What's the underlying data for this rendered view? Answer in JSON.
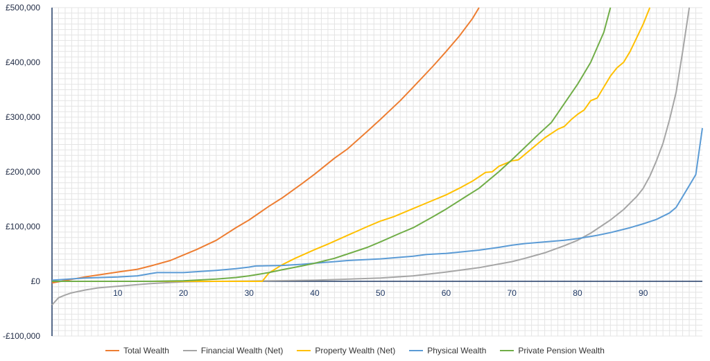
{
  "chart_data": {
    "type": "line",
    "title": "",
    "xlabel": "",
    "ylabel": "",
    "xlim": [
      0,
      99
    ],
    "ylim": [
      -100000,
      500000
    ],
    "y_ticks": [
      500000,
      400000,
      300000,
      200000,
      100000,
      0,
      -100000
    ],
    "y_tick_labels": [
      "£500,000",
      "£400,000",
      "£300,000",
      "£200,000",
      "£100,000",
      "£0",
      "-£100,000"
    ],
    "x_ticks": [
      10,
      20,
      30,
      40,
      50,
      60,
      70,
      80,
      90
    ],
    "x_tick_labels": [
      "10",
      "20",
      "30",
      "40",
      "50",
      "60",
      "70",
      "80",
      "90"
    ],
    "grid": true,
    "legend_position": "bottom",
    "series": [
      {
        "name": "Total Wealth",
        "color": "#ED7D31",
        "points": [
          [
            0,
            -3000
          ],
          [
            5,
            8000
          ],
          [
            10,
            17000
          ],
          [
            13,
            22000
          ],
          [
            15,
            28000
          ],
          [
            18,
            38000
          ],
          [
            20,
            48000
          ],
          [
            22,
            58000
          ],
          [
            25,
            75000
          ],
          [
            28,
            98000
          ],
          [
            30,
            112000
          ],
          [
            33,
            137000
          ],
          [
            35,
            152000
          ],
          [
            38,
            178000
          ],
          [
            40,
            196000
          ],
          [
            43,
            225000
          ],
          [
            45,
            242000
          ],
          [
            48,
            274000
          ],
          [
            50,
            296000
          ],
          [
            53,
            330000
          ],
          [
            55,
            355000
          ],
          [
            58,
            393000
          ],
          [
            60,
            420000
          ],
          [
            62,
            448000
          ],
          [
            64,
            480000
          ],
          [
            65,
            500000
          ]
        ]
      },
      {
        "name": "Financial Wealth (Net)",
        "color": "#A5A5A5",
        "points": [
          [
            0,
            -43000
          ],
          [
            1,
            -30000
          ],
          [
            2,
            -25000
          ],
          [
            3,
            -21000
          ],
          [
            5,
            -16000
          ],
          [
            7,
            -12000
          ],
          [
            10,
            -9000
          ],
          [
            15,
            -4000
          ],
          [
            20,
            -1000
          ],
          [
            25,
            0
          ],
          [
            30,
            500
          ],
          [
            40,
            2000
          ],
          [
            50,
            6000
          ],
          [
            55,
            10000
          ],
          [
            60,
            17000
          ],
          [
            65,
            25000
          ],
          [
            70,
            36000
          ],
          [
            72,
            42000
          ],
          [
            75,
            52000
          ],
          [
            78,
            65000
          ],
          [
            80,
            75000
          ],
          [
            82,
            88000
          ],
          [
            85,
            112000
          ],
          [
            87,
            131000
          ],
          [
            89,
            155000
          ],
          [
            90,
            170000
          ],
          [
            91,
            192000
          ],
          [
            92,
            220000
          ],
          [
            93,
            252000
          ],
          [
            94,
            295000
          ],
          [
            95,
            345000
          ],
          [
            96,
            420000
          ],
          [
            97,
            500000
          ]
        ]
      },
      {
        "name": "Property Wealth (Net)",
        "color": "#FFC000",
        "points": [
          [
            0,
            0
          ],
          [
            32,
            0
          ],
          [
            33,
            15000
          ],
          [
            35,
            30000
          ],
          [
            37,
            42000
          ],
          [
            40,
            58000
          ],
          [
            42,
            68000
          ],
          [
            45,
            84000
          ],
          [
            48,
            100000
          ],
          [
            50,
            110000
          ],
          [
            52,
            118000
          ],
          [
            55,
            133000
          ],
          [
            57,
            143000
          ],
          [
            60,
            158000
          ],
          [
            62,
            170000
          ],
          [
            64,
            183000
          ],
          [
            66,
            199000
          ],
          [
            67,
            200000
          ],
          [
            68,
            210000
          ],
          [
            70,
            220000
          ],
          [
            71,
            222000
          ],
          [
            72,
            232000
          ],
          [
            75,
            262000
          ],
          [
            77,
            278000
          ],
          [
            78,
            283000
          ],
          [
            79,
            295000
          ],
          [
            80,
            305000
          ],
          [
            81,
            313000
          ],
          [
            82,
            330000
          ],
          [
            83,
            335000
          ],
          [
            84,
            355000
          ],
          [
            85,
            375000
          ],
          [
            86,
            390000
          ],
          [
            87,
            400000
          ],
          [
            88,
            420000
          ],
          [
            89,
            445000
          ],
          [
            90,
            470000
          ],
          [
            91,
            500000
          ]
        ]
      },
      {
        "name": "Physical Wealth",
        "color": "#5B9BD5",
        "points": [
          [
            0,
            2000
          ],
          [
            5,
            6000
          ],
          [
            10,
            8000
          ],
          [
            13,
            10000
          ],
          [
            15,
            14000
          ],
          [
            16,
            16000
          ],
          [
            20,
            16000
          ],
          [
            25,
            20000
          ],
          [
            28,
            23000
          ],
          [
            30,
            26000
          ],
          [
            31,
            28000
          ],
          [
            35,
            29000
          ],
          [
            38,
            31000
          ],
          [
            40,
            33000
          ],
          [
            43,
            36000
          ],
          [
            45,
            38000
          ],
          [
            50,
            41000
          ],
          [
            55,
            46000
          ],
          [
            57,
            49000
          ],
          [
            60,
            51000
          ],
          [
            65,
            57000
          ],
          [
            68,
            62000
          ],
          [
            70,
            66000
          ],
          [
            72,
            69000
          ],
          [
            75,
            72000
          ],
          [
            78,
            75000
          ],
          [
            80,
            78000
          ],
          [
            83,
            84000
          ],
          [
            85,
            89000
          ],
          [
            88,
            98000
          ],
          [
            90,
            105000
          ],
          [
            92,
            113000
          ],
          [
            94,
            125000
          ],
          [
            95,
            135000
          ],
          [
            96,
            155000
          ],
          [
            97,
            175000
          ],
          [
            98,
            195000
          ],
          [
            99,
            280000
          ]
        ]
      },
      {
        "name": "Private Pension Wealth",
        "color": "#70AD47",
        "points": [
          [
            0,
            0
          ],
          [
            15,
            0
          ],
          [
            20,
            1000
          ],
          [
            25,
            4000
          ],
          [
            28,
            7000
          ],
          [
            30,
            10000
          ],
          [
            33,
            16000
          ],
          [
            35,
            21000
          ],
          [
            38,
            28000
          ],
          [
            40,
            33000
          ],
          [
            43,
            42000
          ],
          [
            45,
            50000
          ],
          [
            48,
            62000
          ],
          [
            50,
            72000
          ],
          [
            53,
            88000
          ],
          [
            55,
            98000
          ],
          [
            58,
            118000
          ],
          [
            60,
            132000
          ],
          [
            63,
            155000
          ],
          [
            65,
            170000
          ],
          [
            68,
            200000
          ],
          [
            70,
            222000
          ],
          [
            72,
            245000
          ],
          [
            74,
            268000
          ],
          [
            76,
            290000
          ],
          [
            78,
            325000
          ],
          [
            80,
            360000
          ],
          [
            82,
            400000
          ],
          [
            84,
            455000
          ],
          [
            85,
            500000
          ]
        ]
      }
    ]
  }
}
